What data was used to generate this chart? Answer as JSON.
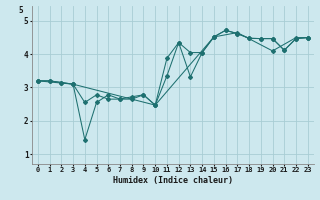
{
  "xlabel": "Humidex (Indice chaleur)",
  "background_color": "#cde8ee",
  "grid_color": "#a8cdd4",
  "line_color": "#1e7070",
  "xlim": [
    -0.5,
    23.5
  ],
  "ylim": [
    0.7,
    5.45
  ],
  "yticks": [
    1,
    2,
    3,
    4,
    5
  ],
  "xticks": [
    0,
    1,
    2,
    3,
    4,
    5,
    6,
    7,
    8,
    9,
    10,
    11,
    12,
    13,
    14,
    15,
    16,
    17,
    18,
    19,
    20,
    21,
    22,
    23
  ],
  "series1_x": [
    0,
    1,
    2,
    3,
    4,
    5,
    6,
    7,
    8,
    9,
    10,
    11,
    12,
    13,
    14,
    15,
    16,
    17,
    18,
    19,
    20,
    21,
    22,
    23
  ],
  "series1_y": [
    3.2,
    3.2,
    3.15,
    3.1,
    2.55,
    2.78,
    2.65,
    2.65,
    2.72,
    2.78,
    2.47,
    3.35,
    4.35,
    3.32,
    4.05,
    4.52,
    4.72,
    4.62,
    4.48,
    4.47,
    4.47,
    4.12,
    4.47,
    4.5
  ],
  "series2_x": [
    0,
    1,
    2,
    3,
    4,
    5,
    6,
    7,
    8,
    9,
    10,
    11,
    12,
    13,
    14,
    15,
    16,
    17,
    18,
    19,
    20,
    21,
    22,
    23
  ],
  "series2_y": [
    3.2,
    3.2,
    3.15,
    3.1,
    1.43,
    2.55,
    2.78,
    2.65,
    2.65,
    2.78,
    2.47,
    3.88,
    4.35,
    4.05,
    4.05,
    4.52,
    4.72,
    4.62,
    4.48,
    4.47,
    4.47,
    4.12,
    4.47,
    4.5
  ],
  "series3_x": [
    0,
    3,
    10,
    15,
    17,
    20,
    22,
    23
  ],
  "series3_y": [
    3.2,
    3.1,
    2.47,
    4.52,
    4.65,
    4.1,
    4.5,
    4.5
  ]
}
